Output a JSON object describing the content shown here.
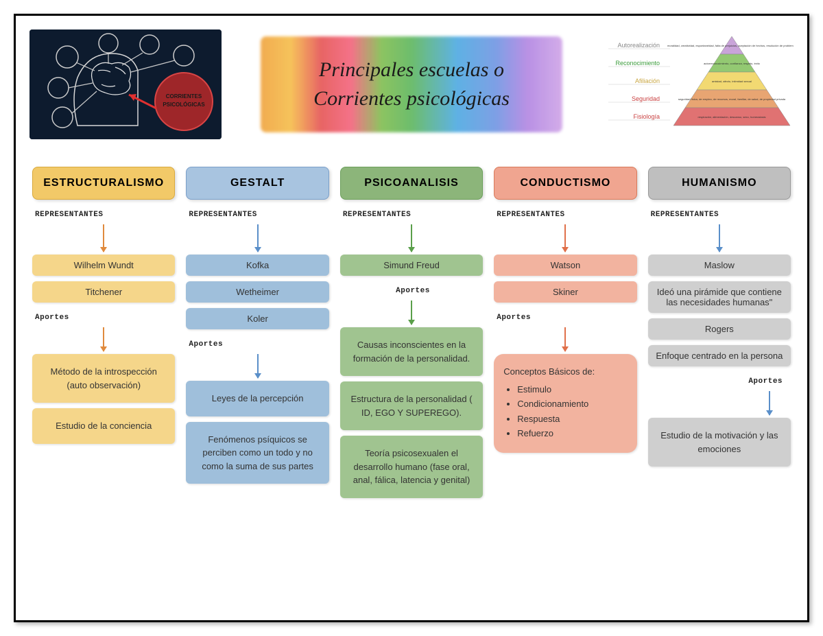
{
  "title_line1": "Principales escuelas o",
  "title_line2": "Corrientes psicológicas",
  "brain_label": "CORRIENTES PSICOLÓGICAS",
  "pyramid": {
    "levels": [
      {
        "label": "Autorealización",
        "color_label": "#888",
        "fill": "#c9a4d9",
        "text": "moralidad, creatividad, espontaneidad, falta de prejuicios, aceptación de hechos, resolución de problemas"
      },
      {
        "label": "Reconocimiento",
        "color_label": "#3a9b3a",
        "fill": "#93c972",
        "text": "autorreconocimiento, confianza, respeto, éxito"
      },
      {
        "label": "Afiliación",
        "color_label": "#c9a642",
        "fill": "#f2d972",
        "text": "amistad, afecto, intimidad sexual"
      },
      {
        "label": "Seguridad",
        "color_label": "#c94242",
        "fill": "#e8a572",
        "text": "seguridad física, de empleo, de recursos, moral, familiar, de salud, de propiedad privada"
      },
      {
        "label": "Fisiología",
        "color_label": "#c94242",
        "fill": "#e07272",
        "text": "respiración, alimentación, descanso, sexo, homeostasis"
      }
    ]
  },
  "labels": {
    "representantes": "REPRESENTANTES",
    "aportes": "Aportes"
  },
  "schools": [
    {
      "name": "ESTRUCTURALISMO",
      "header_bg": "#f2c968",
      "header_border": "#d9a93d",
      "box_bg": "#f5d68a",
      "arrow_color": "#e08a3d",
      "reps": [
        "Wilhelm Wundt",
        "Titchener"
      ],
      "contribs": [
        "Método de la introspección (auto observación)",
        "Estudio de la conciencia"
      ]
    },
    {
      "name": "GESTALT",
      "header_bg": "#a8c4e0",
      "header_border": "#7a9fc9",
      "box_bg": "#9fbfdb",
      "arrow_color": "#5a8fc9",
      "reps": [
        "Kofka",
        "Wetheimer",
        "Koler"
      ],
      "contribs": [
        "Leyes de la percepción",
        "Fenómenos psíquicos se perciben como un todo y no como la suma de sus partes"
      ]
    },
    {
      "name": "PSICOANALISIS",
      "header_bg": "#8cb57a",
      "header_border": "#6b9f5a",
      "box_bg": "#a0c490",
      "arrow_color": "#5a9f4a",
      "reps": [
        "Simund Freud"
      ],
      "contribs": [
        "Causas inconscientes en la formación de la personalidad.",
        "Estructura de la personalidad ( ID, EGO Y SUPEREGO).",
        "Teoría psicosexualen el desarrollo humano (fase oral, anal, fálica, latencia y genital)"
      ]
    },
    {
      "name": "CONDUCTISMO",
      "header_bg": "#f0a590",
      "header_border": "#d97a5a",
      "box_bg": "#f2b39f",
      "arrow_color": "#e0704a",
      "reps": [
        "Watson",
        "Skiner"
      ],
      "contribs_complex": {
        "title": "Conceptos Básicos de:",
        "items": [
          "Estimulo",
          "Condicionamiento",
          "Respuesta",
          "Refuerzo"
        ]
      }
    },
    {
      "name": "HUMANISMO",
      "header_bg": "#bfbfbf",
      "header_border": "#999",
      "box_bg": "#cfcfcf",
      "arrow_color": "#5a8fc9",
      "reps": [
        "Maslow"
      ],
      "extra_after_reps": [
        "Ideó una pirámide que contiene las necesidades humanas\"",
        "Rogers",
        "Enfoque centrado en la persona"
      ],
      "contribs": [
        "Estudio de la motivación y las emociones"
      ]
    }
  ]
}
